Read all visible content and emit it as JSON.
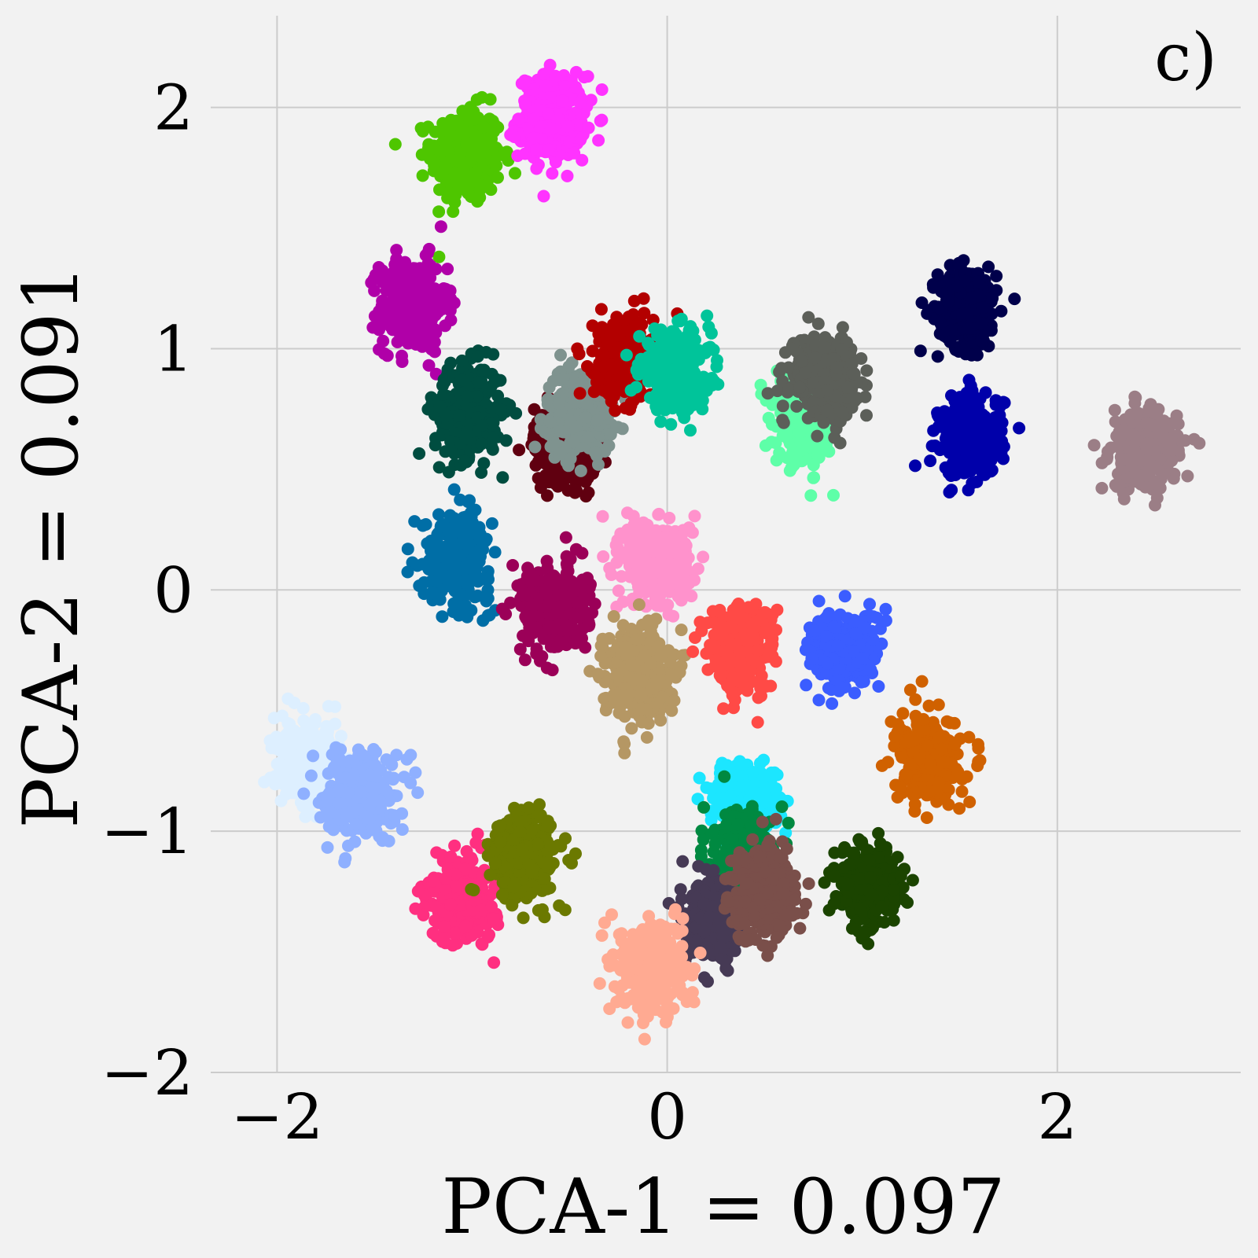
{
  "chart_data": {
    "type": "scatter",
    "title": "",
    "panel_label": "c)",
    "xlabel": "PCA-1 = 0.097",
    "ylabel": "PCA-2 = 0.091",
    "xlim": [
      -2.34,
      2.94
    ],
    "ylim": [
      -2.0,
      2.38
    ],
    "xticks": [
      -2,
      0,
      2
    ],
    "yticks": [
      -2,
      -1,
      0,
      1,
      2
    ],
    "xtick_labels": [
      "−2",
      "0",
      "2"
    ],
    "ytick_labels": [
      "−2",
      "−1",
      "0",
      "1",
      "2"
    ],
    "grid": true,
    "background": "#f2f2f2",
    "grid_color": "#cccccc",
    "clusters": [
      {
        "color": "#4ec600",
        "cx": -1.03,
        "cy": 1.8,
        "sx": 0.09,
        "sy": 0.1
      },
      {
        "color": "#ff33ff",
        "cx": -0.59,
        "cy": 1.96,
        "sx": 0.085,
        "sy": 0.085
      },
      {
        "color": "#b000a8",
        "cx": -1.3,
        "cy": 1.18,
        "sx": 0.085,
        "sy": 0.095
      },
      {
        "color": "#00004b",
        "cx": 1.54,
        "cy": 1.17,
        "sx": 0.075,
        "sy": 0.085
      },
      {
        "color": "#004d40",
        "cx": -1.02,
        "cy": 0.74,
        "sx": 0.085,
        "sy": 0.095
      },
      {
        "color": "#600010",
        "cx": -0.52,
        "cy": 0.6,
        "sx": 0.08,
        "sy": 0.08
      },
      {
        "color": "#7f938f",
        "cx": -0.45,
        "cy": 0.74,
        "sx": 0.085,
        "sy": 0.085
      },
      {
        "color": "#b30000",
        "cx": -0.22,
        "cy": 0.96,
        "sx": 0.075,
        "sy": 0.085
      },
      {
        "color": "#00c49a",
        "cx": 0.04,
        "cy": 0.91,
        "sx": 0.09,
        "sy": 0.08
      },
      {
        "color": "#5effa8",
        "cx": 0.72,
        "cy": 0.7,
        "sx": 0.08,
        "sy": 0.09
      },
      {
        "color": "#5c5f59",
        "cx": 0.8,
        "cy": 0.89,
        "sx": 0.085,
        "sy": 0.08
      },
      {
        "color": "#0000aa",
        "cx": 1.56,
        "cy": 0.64,
        "sx": 0.08,
        "sy": 0.085
      },
      {
        "color": "#9b7e86",
        "cx": 2.45,
        "cy": 0.58,
        "sx": 0.085,
        "sy": 0.08
      },
      {
        "color": "#006ea6",
        "cx": -1.08,
        "cy": 0.14,
        "sx": 0.085,
        "sy": 0.09
      },
      {
        "color": "#9b0058",
        "cx": -0.58,
        "cy": -0.08,
        "sx": 0.085,
        "sy": 0.09
      },
      {
        "color": "#ff92cc",
        "cx": -0.04,
        "cy": 0.11,
        "sx": 0.09,
        "sy": 0.09
      },
      {
        "color": "#b59764",
        "cx": -0.16,
        "cy": -0.34,
        "sx": 0.085,
        "sy": 0.095
      },
      {
        "color": "#ff4a46",
        "cx": 0.38,
        "cy": -0.24,
        "sx": 0.085,
        "sy": 0.09
      },
      {
        "color": "#3b5dff",
        "cx": 0.91,
        "cy": -0.25,
        "sx": 0.09,
        "sy": 0.08
      },
      {
        "color": "#d06100",
        "cx": 1.34,
        "cy": -0.7,
        "sx": 0.08,
        "sy": 0.085
      },
      {
        "color": "#ddefff",
        "cx": -1.84,
        "cy": -0.72,
        "sx": 0.085,
        "sy": 0.085
      },
      {
        "color": "#8fb0ff",
        "cx": -1.57,
        "cy": -0.85,
        "sx": 0.09,
        "sy": 0.085
      },
      {
        "color": "#ff2f80",
        "cx": -1.05,
        "cy": -1.28,
        "sx": 0.085,
        "sy": 0.085
      },
      {
        "color": "#6b7900",
        "cx": -0.73,
        "cy": -1.1,
        "sx": 0.085,
        "sy": 0.09
      },
      {
        "color": "#1ce6ff",
        "cx": 0.39,
        "cy": -0.87,
        "sx": 0.085,
        "sy": 0.08
      },
      {
        "color": "#008941",
        "cx": 0.38,
        "cy": -1.12,
        "sx": 0.075,
        "sy": 0.09
      },
      {
        "color": "#463a55",
        "cx": 0.23,
        "cy": -1.38,
        "sx": 0.07,
        "sy": 0.08
      },
      {
        "color": "#7a4f4a",
        "cx": 0.49,
        "cy": -1.26,
        "sx": 0.085,
        "sy": 0.095
      },
      {
        "color": "#1b4400",
        "cx": 1.03,
        "cy": -1.22,
        "sx": 0.08,
        "sy": 0.08
      },
      {
        "color": "#ffaa92",
        "cx": -0.08,
        "cy": -1.57,
        "sx": 0.085,
        "sy": 0.095
      }
    ],
    "points_per_cluster": 320
  }
}
